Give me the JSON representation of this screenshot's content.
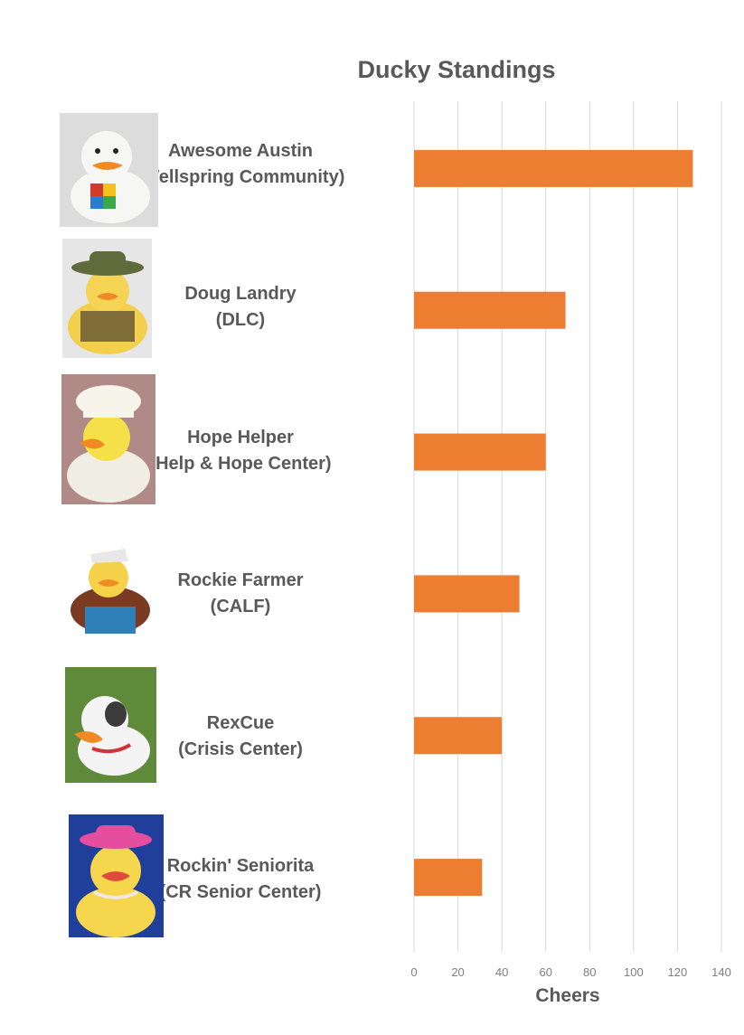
{
  "chart_data": {
    "type": "bar",
    "orientation": "horizontal",
    "title": "Ducky Standings",
    "xlabel": "Cheers",
    "ylabel": "",
    "xlim": [
      0,
      140
    ],
    "x_ticks": [
      0,
      20,
      40,
      60,
      80,
      100,
      120,
      140
    ],
    "grid": "vertical",
    "bar_color": "#ED7D31",
    "categories": [
      {
        "name": "Awesome Austin",
        "org": "(Wellspring Community)",
        "value": 127
      },
      {
        "name": "Doug Landry",
        "org": "(DLC)",
        "value": 69
      },
      {
        "name": "Hope Helper",
        "org": "(Help & Hope Center)",
        "value": 60
      },
      {
        "name": "Rockie Farmer",
        "org": "(CALF)",
        "value": 48
      },
      {
        "name": "RexCue",
        "org": "(Crisis Center)",
        "value": 40
      },
      {
        "name": "Rockin' Seniorita",
        "org": "(CR Senior Center)",
        "value": 31
      }
    ]
  }
}
